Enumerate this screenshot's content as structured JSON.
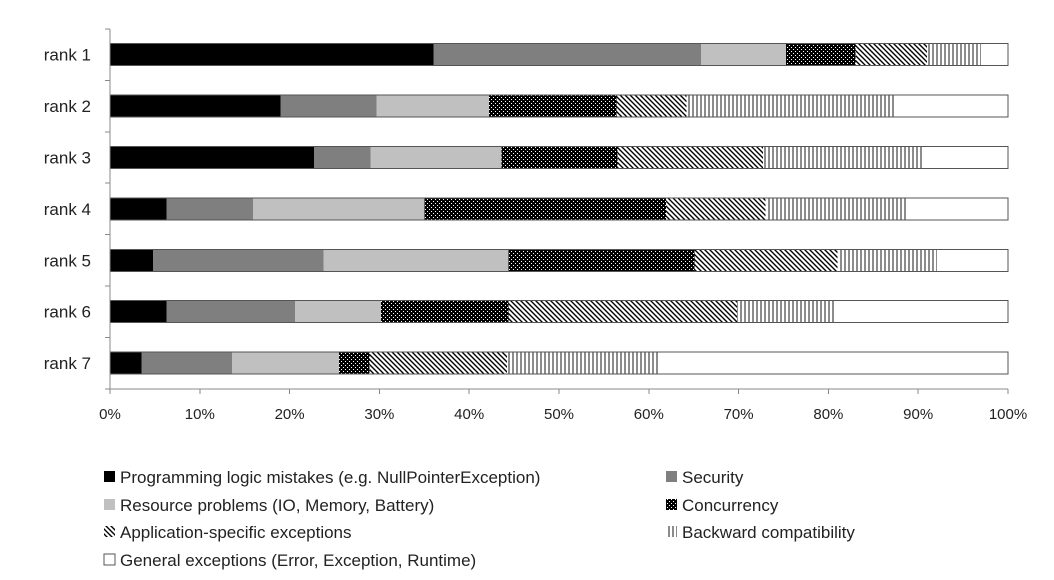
{
  "chart_data": {
    "type": "bar",
    "orientation": "horizontal",
    "stacked": true,
    "percent": true,
    "categories": [
      "rank 1",
      "rank 2",
      "rank 3",
      "rank 4",
      "rank 5",
      "rank 6",
      "rank 7"
    ],
    "xlim": [
      0,
      100
    ],
    "ticks": [
      0,
      10,
      20,
      30,
      40,
      50,
      60,
      70,
      80,
      90,
      100
    ],
    "tick_labels": [
      "0%",
      "10%",
      "20%",
      "30%",
      "40%",
      "50%",
      "60%",
      "70%",
      "80%",
      "90%",
      "100%"
    ],
    "title": "",
    "xlabel": "",
    "ylabel": "",
    "grid": false,
    "legend_position": "bottom",
    "series": [
      {
        "name": "Programming logic mistakes (e.g. NullPointerException)",
        "pattern": "solid-black",
        "color": "#000000",
        "values": [
          36,
          19,
          22.7,
          6.3,
          4.8,
          6.3,
          3.5
        ]
      },
      {
        "name": "Security",
        "pattern": "solid-dark-gray",
        "color": "#7f7f7f",
        "values": [
          29.8,
          10.7,
          6.3,
          9.6,
          19,
          14.3,
          10.1
        ]
      },
      {
        "name": "Resource problems (IO, Memory, Battery)",
        "pattern": "solid-light-gray",
        "color": "#c0c0c0",
        "values": [
          9.5,
          12.5,
          14.6,
          19.1,
          20.6,
          9.6,
          11.9
        ]
      },
      {
        "name": "Concurrency",
        "pattern": "dotted-black",
        "color": "#111111",
        "values": [
          7.7,
          14.2,
          12.9,
          26.9,
          20.7,
          14.2,
          3.4
        ]
      },
      {
        "name": "Application-specific exceptions",
        "pattern": "diagonal-hatch",
        "color": "#000000",
        "values": [
          8,
          7.8,
          16.2,
          11.1,
          15.9,
          25.4,
          15.3
        ]
      },
      {
        "name": "Backward compatibility",
        "pattern": "vertical-lines",
        "color": "#000000",
        "values": [
          6,
          23.3,
          17.7,
          15.8,
          11.1,
          11.1,
          17
        ]
      },
      {
        "name": "General exceptions (Error, Exception, Runtime)",
        "pattern": "white",
        "color": "#ffffff",
        "values": [
          3,
          12.5,
          9.6,
          11.2,
          7.9,
          19.1,
          38.8
        ]
      }
    ]
  }
}
